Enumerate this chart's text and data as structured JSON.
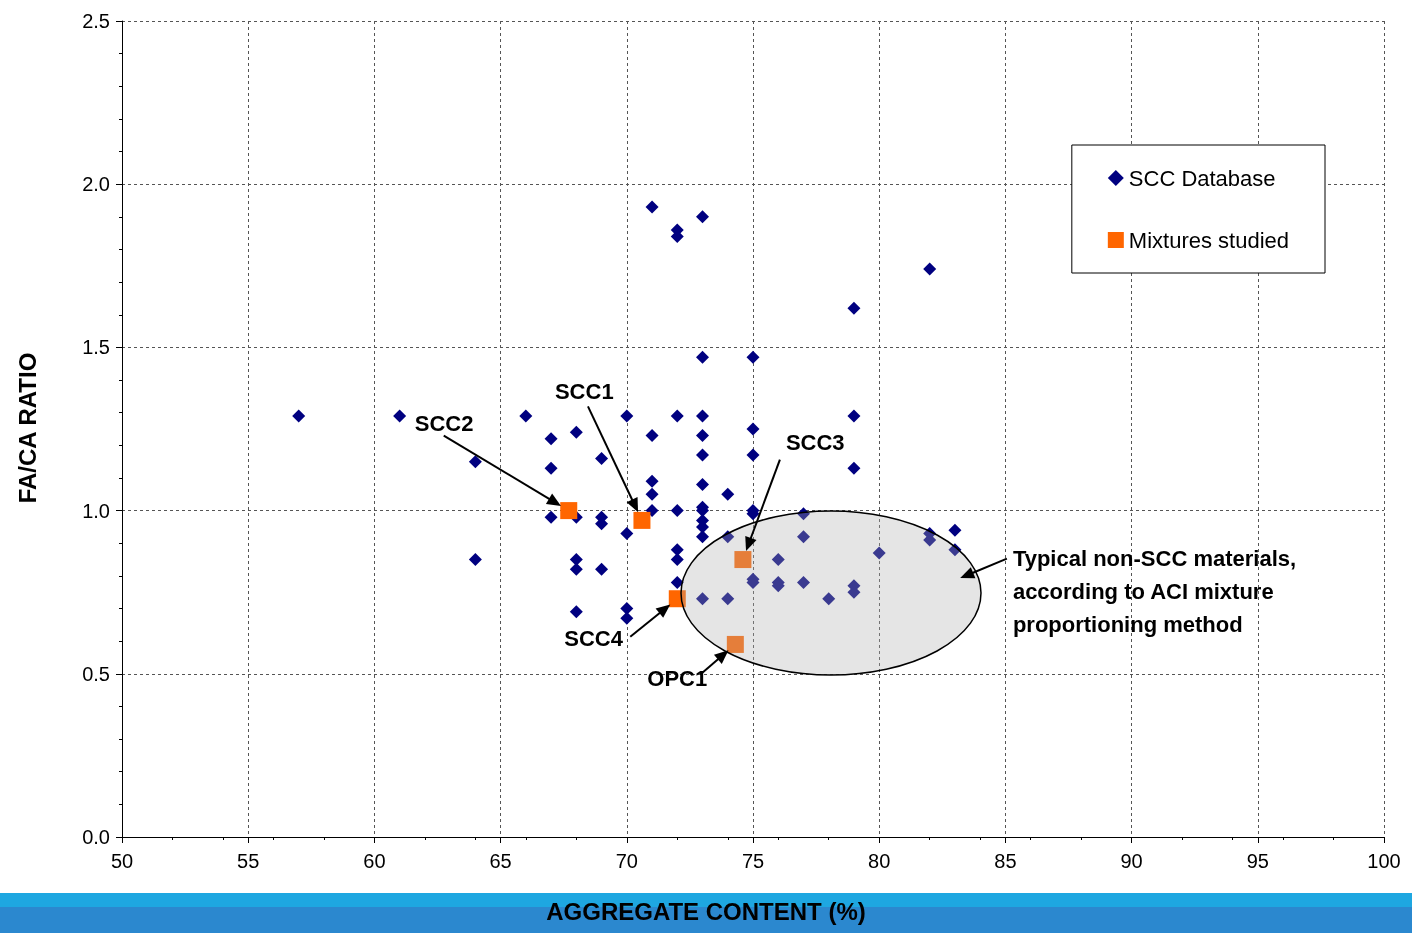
{
  "chart_data": {
    "type": "scatter",
    "xlabel": "AGGREGATE CONTENT (%)",
    "ylabel": "FA/CA RATIO",
    "xlim": [
      50,
      100
    ],
    "xticks": [
      50,
      55,
      60,
      65,
      70,
      75,
      80,
      85,
      90,
      95,
      100
    ],
    "ylim": [
      0,
      2.5
    ],
    "yticks": [
      {
        "value": 0,
        "label": "0.0"
      },
      {
        "value": 0.5,
        "label": "0.5"
      },
      {
        "value": 1,
        "label": "1.0"
      },
      {
        "value": 1.5,
        "label": "1.5"
      },
      {
        "value": 2,
        "label": "2.0"
      },
      {
        "value": 2.5,
        "label": "2.5"
      }
    ],
    "grid": true,
    "legend": "top right",
    "series": [
      {
        "name": "SCC Database",
        "color": "#000080",
        "marker": "diamond",
        "x": [
          57,
          61,
          64,
          64,
          66,
          67,
          67,
          67,
          68,
          68,
          68,
          68,
          68,
          69,
          69,
          69,
          69,
          70,
          70,
          70,
          70,
          71,
          71,
          71,
          71,
          71,
          72,
          72,
          72,
          72,
          72,
          72,
          72,
          73,
          73,
          73,
          73,
          73,
          73,
          73,
          73,
          73,
          73,
          73,
          73,
          74,
          74,
          74,
          75,
          75,
          75,
          75,
          75,
          75,
          75,
          76,
          76,
          76,
          77,
          77,
          77,
          78,
          79,
          79,
          79,
          79,
          79,
          80,
          82,
          82,
          82,
          83,
          83
        ],
        "values": [
          1.29,
          1.29,
          1.15,
          0.85,
          1.29,
          1.22,
          1.13,
          0.98,
          1.24,
          0.98,
          0.85,
          0.82,
          0.69,
          1.16,
          0.98,
          0.96,
          0.82,
          1.29,
          0.93,
          0.7,
          0.67,
          1.93,
          1.23,
          1.09,
          1.05,
          1.0,
          1.86,
          1.84,
          1.29,
          1.0,
          0.88,
          0.85,
          0.78,
          1.9,
          1.47,
          1.29,
          1.23,
          1.17,
          1.08,
          1.01,
          1.0,
          0.97,
          0.95,
          0.92,
          0.73,
          1.05,
          0.92,
          0.73,
          1.47,
          1.25,
          1.17,
          1.0,
          0.99,
          0.79,
          0.78,
          0.85,
          0.78,
          0.77,
          0.99,
          0.92,
          0.78,
          0.73,
          1.62,
          1.29,
          1.13,
          0.77,
          0.75,
          0.87,
          1.74,
          0.93,
          0.91,
          0.94,
          0.88
        ]
      },
      {
        "name": "Mixtures studied",
        "color": "#ff6600",
        "marker": "square",
        "x": [
          67.7,
          70.6,
          74.6,
          72,
          74.3
        ],
        "values": [
          1.0,
          0.97,
          0.85,
          0.73,
          0.59
        ]
      }
    ],
    "annotations": [
      "SCC2",
      "SCC1",
      "SCC3",
      {
        "text": "SCC4",
        "x": 72,
        "y": 0.73
      },
      {
        "text": "OPC1",
        "x": 74.3,
        "y": 0.59
      },
      "Typical non-SCC materials, according to ACI mixture proportioning method"
    ]
  }
}
